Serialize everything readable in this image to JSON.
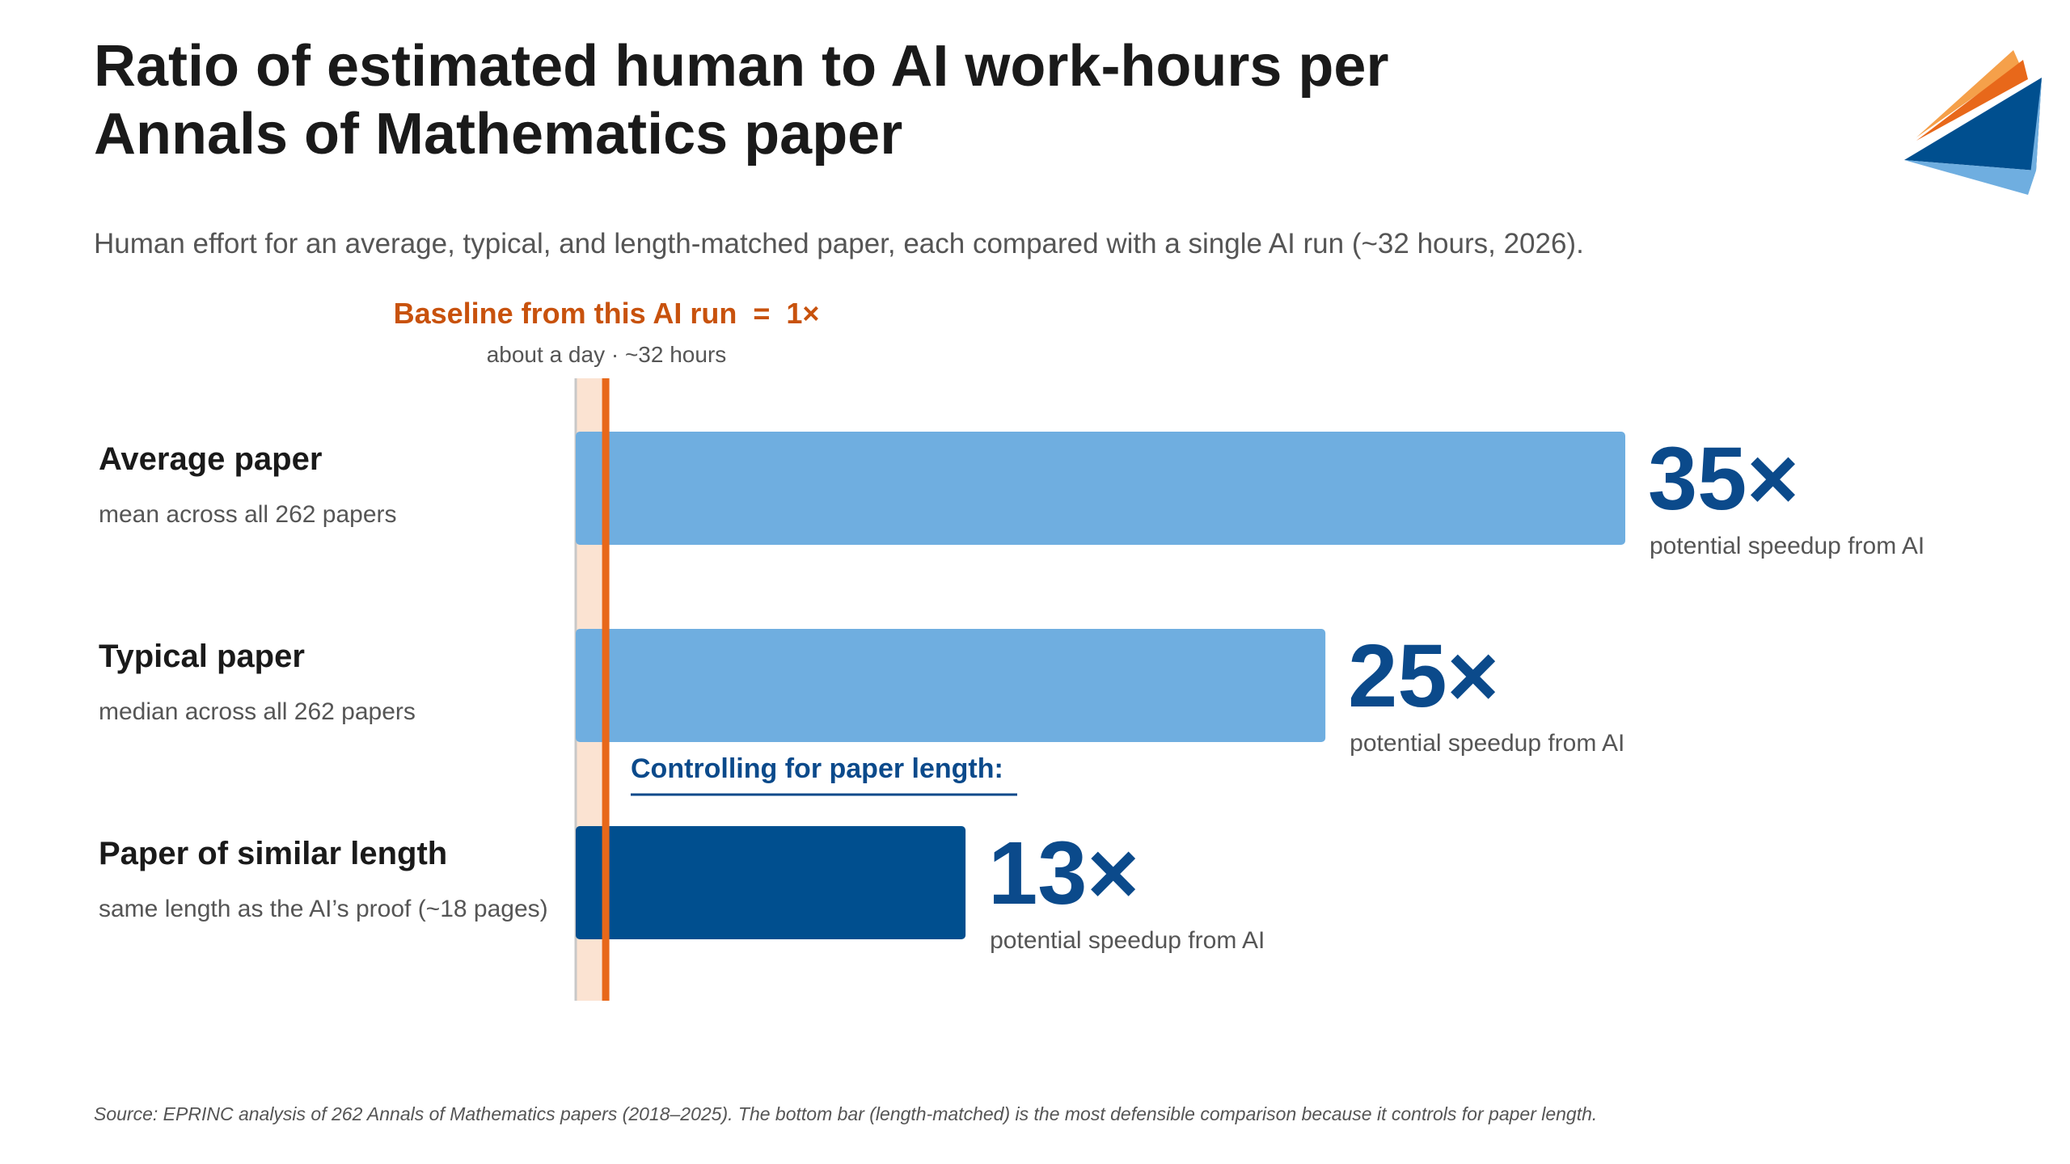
{
  "chart_data": {
    "type": "bar",
    "orientation": "horizontal",
    "title": "Ratio of estimated human to AI work-hours per Annals of Mathematics paper",
    "subtitle": "Human effort for an average, typical, and length-matched paper, each compared with a single AI run (~32 hours, 2026).",
    "categories": [
      "Average paper",
      "Typical paper",
      "Paper of similar length"
    ],
    "category_notes": [
      "mean across all 262 papers",
      "median across all 262 papers",
      "same length as the AI’s proof (~18 pages)"
    ],
    "values": [
      35,
      25,
      13
    ],
    "value_labels": [
      "35×",
      "25×",
      "13×"
    ],
    "value_caption": "potential speedup from AI",
    "bar_colors": [
      "#6faee0",
      "#6faee0",
      "#004f8f"
    ],
    "value_label_color": "#0b4a8b",
    "baseline": {
      "value": 1,
      "label": "Baseline from this AI run  =  1×",
      "sublabel": "about a day · ~32 hours",
      "color": "#e8681a",
      "band_color": "#fbe3d2"
    },
    "group_annotation": {
      "text": "Controlling for paper length:",
      "color": "#0b4a8b"
    },
    "xlim": [
      0,
      35
    ],
    "grid": false,
    "legend": "none",
    "source": "Source: EPRINC analysis of 262 Annals of Mathematics papers (2018–2025). The bottom bar (length-matched) is the most defensible comparison because it controls for paper length."
  },
  "logo": {
    "icon": "paper-plane-logo-icon",
    "colors": [
      "#f5a04a",
      "#e8681a",
      "#004f8f",
      "#6faee0"
    ]
  }
}
